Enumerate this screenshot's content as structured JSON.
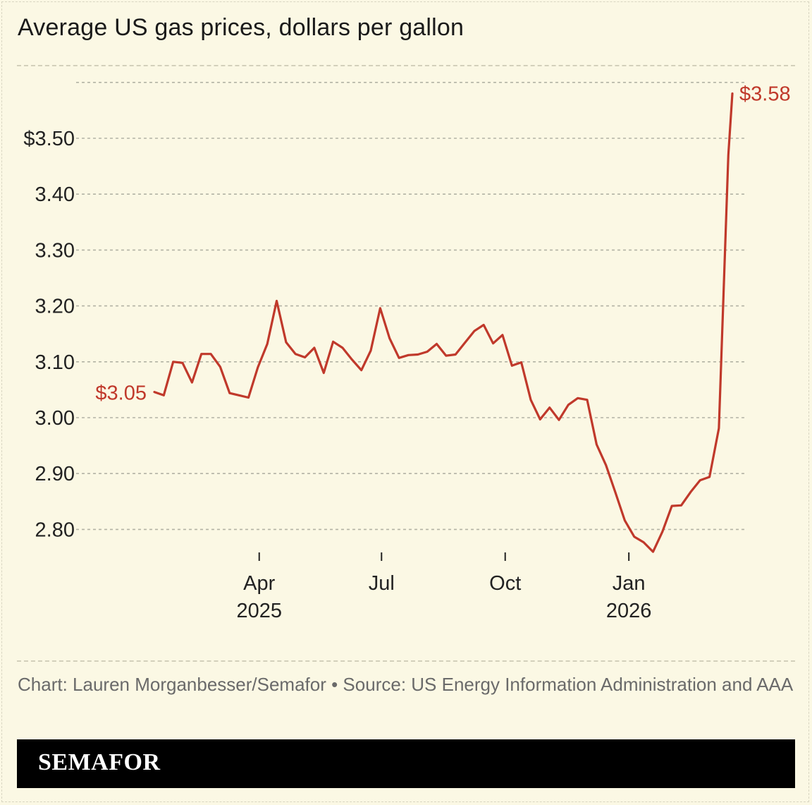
{
  "title": "Average US gas prices, dollars per gallon",
  "credit": "Chart: Lauren Morganbesser/Semafor • Source: US Energy Information Administration and AAA",
  "brand": "SEMAFOR",
  "colors": {
    "background": "#fbf8e4",
    "line": "#c0392b",
    "grid": "#b3b3a5",
    "brand_bar": "#000000"
  },
  "chart_data": {
    "type": "line",
    "title": "Average US gas prices, dollars per gallon",
    "xlabel": "",
    "ylabel": "",
    "ylim": [
      2.75,
      3.63
    ],
    "y_ticks": [
      {
        "value": 3.5,
        "label": "$3.50"
      },
      {
        "value": 3.4,
        "label": "3.40"
      },
      {
        "value": 3.3,
        "label": "3.30"
      },
      {
        "value": 3.2,
        "label": "3.20"
      },
      {
        "value": 3.1,
        "label": "3.10"
      },
      {
        "value": 3.0,
        "label": "3.00"
      },
      {
        "value": 2.9,
        "label": "2.90"
      },
      {
        "value": 2.8,
        "label": "2.80"
      }
    ],
    "x_ticks": [
      {
        "date": "2025-04-01",
        "label": "Apr",
        "sublabel": "2025"
      },
      {
        "date": "2025-07-01",
        "label": "Jul",
        "sublabel": ""
      },
      {
        "date": "2025-10-01",
        "label": "Oct",
        "sublabel": ""
      },
      {
        "date": "2026-01-01",
        "label": "Jan",
        "sublabel": "2026"
      }
    ],
    "grid": true,
    "annotations": {
      "start": "$3.05",
      "end": "$3.58"
    },
    "series": [
      {
        "points": [
          [
            "2025-01-13",
            3.046
          ],
          [
            "2025-01-20",
            3.04
          ],
          [
            "2025-01-27",
            3.1
          ],
          [
            "2025-02-03",
            3.098
          ],
          [
            "2025-02-10",
            3.063
          ],
          [
            "2025-02-17",
            3.114
          ],
          [
            "2025-02-24",
            3.114
          ],
          [
            "2025-03-03",
            3.091
          ],
          [
            "2025-03-10",
            3.044
          ],
          [
            "2025-03-17",
            3.04
          ],
          [
            "2025-03-24",
            3.036
          ],
          [
            "2025-03-31",
            3.09
          ],
          [
            "2025-04-07",
            3.132
          ],
          [
            "2025-04-14",
            3.209
          ],
          [
            "2025-04-21",
            3.135
          ],
          [
            "2025-04-28",
            3.114
          ],
          [
            "2025-05-05",
            3.108
          ],
          [
            "2025-05-12",
            3.125
          ],
          [
            "2025-05-19",
            3.08
          ],
          [
            "2025-05-26",
            3.136
          ],
          [
            "2025-06-02",
            3.125
          ],
          [
            "2025-06-09",
            3.104
          ],
          [
            "2025-06-16",
            3.085
          ],
          [
            "2025-06-23",
            3.12
          ],
          [
            "2025-06-30",
            3.196
          ],
          [
            "2025-07-07",
            3.142
          ],
          [
            "2025-07-14",
            3.107
          ],
          [
            "2025-07-21",
            3.112
          ],
          [
            "2025-07-28",
            3.113
          ],
          [
            "2025-08-04",
            3.118
          ],
          [
            "2025-08-11",
            3.132
          ],
          [
            "2025-08-18",
            3.111
          ],
          [
            "2025-08-25",
            3.113
          ],
          [
            "2025-09-01",
            3.134
          ],
          [
            "2025-09-08",
            3.155
          ],
          [
            "2025-09-15",
            3.166
          ],
          [
            "2025-09-22",
            3.133
          ],
          [
            "2025-09-29",
            3.148
          ],
          [
            "2025-10-06",
            3.093
          ],
          [
            "2025-10-13",
            3.099
          ],
          [
            "2025-10-20",
            3.032
          ],
          [
            "2025-10-27",
            2.997
          ],
          [
            "2025-11-03",
            3.018
          ],
          [
            "2025-11-10",
            2.996
          ],
          [
            "2025-11-17",
            3.023
          ],
          [
            "2025-11-24",
            3.035
          ],
          [
            "2025-12-01",
            3.032
          ],
          [
            "2025-12-08",
            2.952
          ],
          [
            "2025-12-15",
            2.915
          ],
          [
            "2025-12-22",
            2.866
          ],
          [
            "2025-12-29",
            2.816
          ],
          [
            "2026-01-05",
            2.787
          ],
          [
            "2026-01-12",
            2.777
          ],
          [
            "2026-01-19",
            2.76
          ],
          [
            "2026-01-26",
            2.796
          ],
          [
            "2026-02-02",
            2.842
          ],
          [
            "2026-02-09",
            2.843
          ],
          [
            "2026-02-16",
            2.867
          ],
          [
            "2026-02-23",
            2.888
          ],
          [
            "2026-03-02",
            2.894
          ],
          [
            "2026-03-09",
            2.981
          ],
          [
            "2026-03-16",
            3.47
          ],
          [
            "2026-03-19",
            3.58
          ]
        ]
      }
    ]
  }
}
